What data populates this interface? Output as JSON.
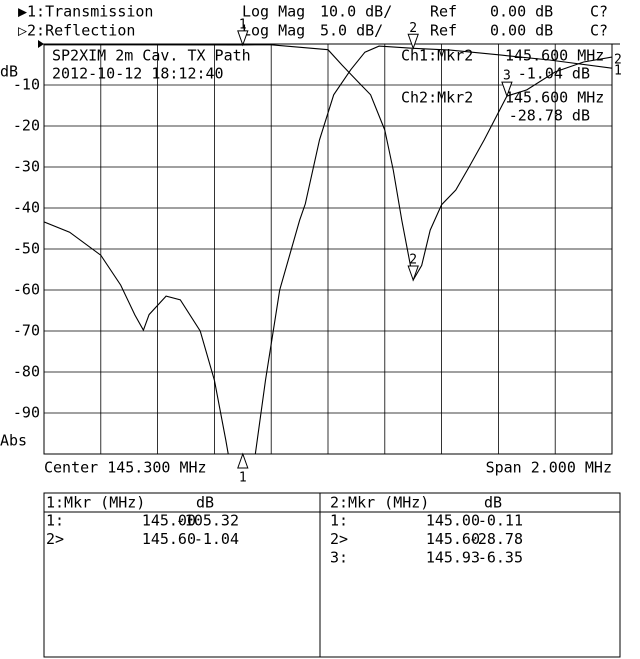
{
  "header": {
    "lines": [
      [
        "▶1:Transmission",
        "Log Mag",
        "10.0 dB/",
        "Ref",
        "0.00 dB",
        "C?"
      ],
      [
        "▷2:Reflection",
        "Log Mag",
        "5.0 dB/",
        "Ref",
        "0.00 dB",
        "C?"
      ]
    ]
  },
  "chart_data": {
    "type": "line",
    "title": "SP2XIM 2m Cav. TX Path",
    "subtitle": "2012-10-12 18:12:40",
    "y_label_top": "dB",
    "y_label_bottom": "Abs",
    "x_center_label": "Center 145.300 MHz",
    "x_span_label": "Span 2.000 MHz",
    "xlim": [
      144.3,
      146.3
    ],
    "xticks": [
      144.3,
      144.5,
      144.7,
      144.9,
      145.1,
      145.3,
      145.5,
      145.7,
      145.9,
      146.1,
      146.3
    ],
    "ylim": [
      -100,
      0
    ],
    "yticks": [
      -10,
      -20,
      -30,
      -40,
      -50,
      -60,
      -70,
      -80,
      -90
    ],
    "y2lim": [
      -50,
      0
    ],
    "grid": true,
    "annotations": [
      [
        "Ch1:Mkr2",
        "145.600 MHz",
        "-1.04 dB"
      ],
      [
        "Ch2:Mkr2",
        "145.600 MHz",
        "-28.78 dB"
      ]
    ],
    "series": [
      {
        "name": "Transmission",
        "trace_label": "1",
        "color": "#000000",
        "x": [
          144.3,
          144.39,
          144.5,
          144.57,
          144.62,
          144.65,
          144.67,
          144.73,
          144.78,
          144.85,
          144.9,
          144.94,
          144.95,
          145.0,
          145.04,
          145.08,
          145.13,
          145.2,
          145.22,
          145.27,
          145.32,
          145.38,
          145.43,
          145.48,
          145.6,
          145.73,
          145.91,
          146.08,
          146.3
        ],
        "values": [
          -43.4,
          -45.9,
          -51.5,
          -58.8,
          -66.1,
          -69.8,
          -66,
          -61.5,
          -62.4,
          -70,
          -82,
          -96.6,
          -100.5,
          -105.32,
          -102,
          -82,
          -60,
          -43,
          -39,
          -23.4,
          -12.4,
          -6.3,
          -2,
          -0.5,
          -1.04,
          -1.5,
          -2.7,
          -3.9,
          -5.9
        ]
      },
      {
        "name": "Reflection",
        "trace_label": "2",
        "color": "#000000",
        "axis": "y2",
        "x": [
          144.3,
          144.6,
          145.0,
          145.1,
          145.3,
          145.35,
          145.4,
          145.45,
          145.5,
          145.53,
          145.56,
          145.6,
          145.63,
          145.66,
          145.7,
          145.75,
          145.8,
          145.85,
          145.93,
          146.0,
          146.1,
          146.2,
          146.3
        ],
        "values": [
          -0.1,
          -0.1,
          -0.11,
          -0.1,
          -0.7,
          -2.6,
          -4.4,
          -6.2,
          -10.5,
          -15.4,
          -21.5,
          -28.78,
          -27,
          -22.7,
          -19.6,
          -17.8,
          -14.8,
          -11.7,
          -6.35,
          -5.6,
          -3.4,
          -2.2,
          -1.6
        ]
      }
    ]
  },
  "marker_tables": [
    {
      "title": "1:Mkr (MHz)",
      "unit": "dB",
      "rows": [
        {
          "id": "1:",
          "label": "1",
          "freq": "145.00",
          "value": "-105.32"
        },
        {
          "id": "2>",
          "label": "2",
          "freq": "145.60",
          "value": "-1.04"
        }
      ]
    },
    {
      "title": "2:Mkr (MHz)",
      "unit": "dB",
      "rows": [
        {
          "id": "1:",
          "label": "1",
          "freq": "145.00",
          "value": "-0.11"
        },
        {
          "id": "2>",
          "label": "2",
          "freq": "145.60",
          "value": "-28.78"
        },
        {
          "id": "3:",
          "label": "3",
          "freq": "145.93",
          "value": "-6.35"
        }
      ]
    }
  ]
}
